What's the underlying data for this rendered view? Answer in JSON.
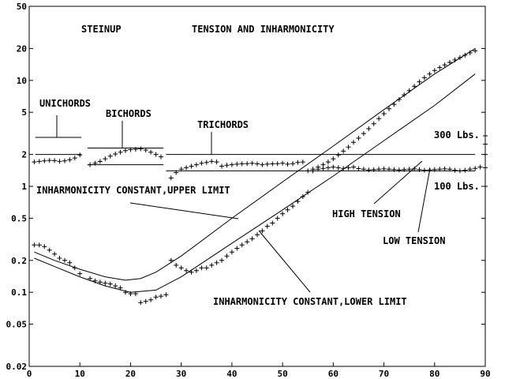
{
  "chart_data": {
    "type": "scatter",
    "title_left": "STEINUP",
    "title_right": "TENSION AND INHARMONICITY",
    "xlim": [
      0,
      90
    ],
    "ylim": [
      0.02,
      50
    ],
    "y_scale": "log",
    "x_ticks": [
      0,
      10,
      20,
      30,
      40,
      50,
      60,
      70,
      80,
      90
    ],
    "x_tick_labels": [
      "0",
      "10",
      "20",
      "30",
      "40",
      "50",
      "60",
      "70",
      "80",
      "90"
    ],
    "y_ticks": [
      0.02,
      0.05,
      0.1,
      0.2,
      0.5,
      1,
      2,
      5,
      10,
      20,
      50
    ],
    "y_tick_labels": [
      "0.02",
      "0.05",
      "0.1",
      "0.2",
      "0.5",
      "1",
      "2",
      "5",
      "10",
      "20",
      "50"
    ],
    "grid": false,
    "annotations": {
      "unichords": "UNICHORDS",
      "bichords": "BICHORDS",
      "trichords": "TRICHORDS",
      "lbs300": "300 Lbs.",
      "lbs100": "100 Lbs.",
      "inh_upper": "INHARMONICITY CONSTANT,UPPER LIMIT",
      "inh_lower": "INHARMONICITY CONSTANT,LOWER LIMIT",
      "high_tension": "HIGH TENSION",
      "low_tension": "LOW TENSION"
    },
    "reference_lines": {
      "lbs300": 2.0,
      "lbs100": 1.4
    },
    "limit_curves": {
      "upper": {
        "x": [
          1,
          5,
          10,
          15,
          19,
          22,
          25,
          30,
          40,
          50,
          60,
          70,
          80,
          88
        ],
        "y": [
          0.24,
          0.2,
          0.165,
          0.14,
          0.13,
          0.135,
          0.155,
          0.22,
          0.5,
          1.1,
          2.4,
          5.3,
          11.5,
          20
        ]
      },
      "lower": {
        "x": [
          1,
          5,
          10,
          15,
          20,
          25,
          30,
          40,
          50,
          60,
          70,
          80,
          88
        ],
        "y": [
          0.21,
          0.175,
          0.14,
          0.115,
          0.1,
          0.105,
          0.14,
          0.29,
          0.6,
          1.25,
          2.7,
          5.8,
          11.5
        ]
      }
    },
    "series": [
      {
        "x": [
          1,
          2,
          3,
          4,
          5,
          6,
          7,
          8,
          9,
          10,
          12,
          13,
          14,
          15,
          16,
          17,
          18,
          19,
          20,
          21,
          22,
          23,
          24,
          25,
          26,
          28,
          29,
          30,
          31,
          32,
          33,
          34,
          35,
          36,
          37,
          38,
          39,
          40,
          41,
          42,
          43,
          44,
          45,
          46,
          47,
          48,
          49,
          50,
          51,
          52,
          53,
          54,
          55,
          56,
          57,
          58,
          59,
          60,
          61,
          62,
          63,
          64,
          65,
          66,
          67,
          68,
          69,
          70,
          71,
          72,
          73,
          74,
          75,
          76,
          77,
          78,
          79,
          80,
          81,
          82,
          83,
          84,
          85,
          86,
          87,
          88
        ],
        "y": [
          1.7,
          1.72,
          1.74,
          1.76,
          1.75,
          1.72,
          1.74,
          1.78,
          1.85,
          1.98,
          1.6,
          1.65,
          1.72,
          1.82,
          1.93,
          2.02,
          2.1,
          2.17,
          2.22,
          2.24,
          2.26,
          2.2,
          2.1,
          2.0,
          1.9,
          1.2,
          1.35,
          1.45,
          1.5,
          1.55,
          1.6,
          1.65,
          1.68,
          1.72,
          1.7,
          1.55,
          1.58,
          1.6,
          1.62,
          1.63,
          1.64,
          1.65,
          1.63,
          1.6,
          1.62,
          1.63,
          1.64,
          1.65,
          1.62,
          1.64,
          1.68,
          1.7,
          1.4,
          1.45,
          1.52,
          1.6,
          1.7,
          1.82,
          1.98,
          2.15,
          2.35,
          2.6,
          2.85,
          3.15,
          3.5,
          3.9,
          4.35,
          4.85,
          5.4,
          5.95,
          6.6,
          7.3,
          8.0,
          8.8,
          9.7,
          10.6,
          11.5,
          12.4,
          13.2,
          14.0,
          14.8,
          15.6,
          16.4,
          17.3,
          18.2,
          19.0
        ],
        "marker": "+"
      },
      {
        "x": [
          1,
          2,
          3,
          4,
          5,
          6,
          7,
          8,
          9,
          10,
          12,
          13,
          14,
          15,
          16,
          17,
          18,
          19,
          20,
          21,
          22,
          23,
          24,
          25,
          26,
          27,
          28,
          29,
          30,
          31,
          32,
          33,
          34,
          35,
          36,
          37,
          38,
          39,
          40,
          41,
          42,
          43,
          44,
          45,
          46,
          47,
          48,
          49,
          50,
          51,
          52,
          53,
          54,
          55,
          56,
          57,
          58,
          59,
          60,
          61,
          62,
          63,
          64,
          65,
          66,
          67,
          68,
          69,
          70,
          71,
          72,
          73,
          74,
          75,
          76,
          77,
          78,
          79,
          80,
          81,
          82,
          83,
          84,
          85,
          86,
          87,
          88,
          89
        ],
        "y": [
          0.28,
          0.28,
          0.27,
          0.25,
          0.23,
          0.21,
          0.2,
          0.19,
          0.17,
          0.15,
          0.135,
          0.128,
          0.125,
          0.122,
          0.12,
          0.115,
          0.11,
          0.1,
          0.097,
          0.097,
          0.08,
          0.082,
          0.085,
          0.09,
          0.092,
          0.095,
          0.2,
          0.18,
          0.17,
          0.16,
          0.155,
          0.16,
          0.17,
          0.17,
          0.18,
          0.19,
          0.2,
          0.22,
          0.24,
          0.26,
          0.28,
          0.3,
          0.32,
          0.35,
          0.38,
          0.42,
          0.45,
          0.5,
          0.55,
          0.6,
          0.65,
          0.72,
          0.8,
          0.88,
          1.4,
          1.45,
          1.48,
          1.5,
          1.52,
          1.5,
          1.48,
          1.5,
          1.52,
          1.47,
          1.45,
          1.43,
          1.44,
          1.45,
          1.46,
          1.45,
          1.44,
          1.43,
          1.44,
          1.45,
          1.46,
          1.44,
          1.42,
          1.43,
          1.44,
          1.45,
          1.46,
          1.45,
          1.42,
          1.4,
          1.42,
          1.45,
          1.48,
          1.52
        ],
        "marker": "+"
      }
    ]
  }
}
